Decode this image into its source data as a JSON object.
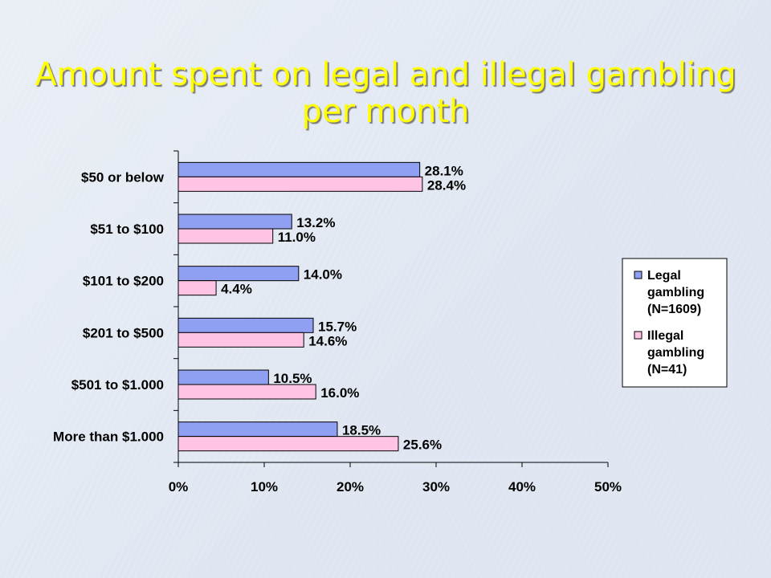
{
  "title_lines": [
    "Amount spent on legal and illegal gambling",
    "per month"
  ],
  "colors": {
    "title": "#ffff00",
    "legal": "#8f9ff2",
    "illegal": "#ffc4e4",
    "outline": "#000000"
  },
  "chart_data": {
    "type": "bar",
    "orientation": "horizontal",
    "categories": [
      "$50 or below",
      "$51 to $100",
      "$101 to $200",
      "$201 to $500",
      "$501 to $1.000",
      "More than $1.000"
    ],
    "series": [
      {
        "name": "Legal gambling (N=1609)",
        "legend_lines": [
          "Legal",
          "gambling",
          "(N=1609)"
        ],
        "values": [
          28.1,
          13.2,
          14.0,
          15.7,
          10.5,
          18.5
        ],
        "labels": [
          "28.1%",
          "13.2%",
          "14.0%",
          "15.7%",
          "10.5%",
          "18.5%"
        ]
      },
      {
        "name": "Illegal gambling (N=41)",
        "legend_lines": [
          "Illegal",
          "gambling",
          "(N=41)"
        ],
        "values": [
          28.4,
          11.0,
          4.4,
          14.6,
          16.0,
          25.6
        ],
        "labels": [
          "28.4%",
          "11.0%",
          "4.4%",
          "14.6%",
          "16.0%",
          "25.6%"
        ]
      }
    ],
    "xlim": [
      0,
      50
    ],
    "x_ticks": [
      0,
      10,
      20,
      30,
      40,
      50
    ],
    "x_tick_labels": [
      "0%",
      "10%",
      "20%",
      "30%",
      "40%",
      "50%"
    ],
    "grid": false,
    "legend_position": "right"
  }
}
